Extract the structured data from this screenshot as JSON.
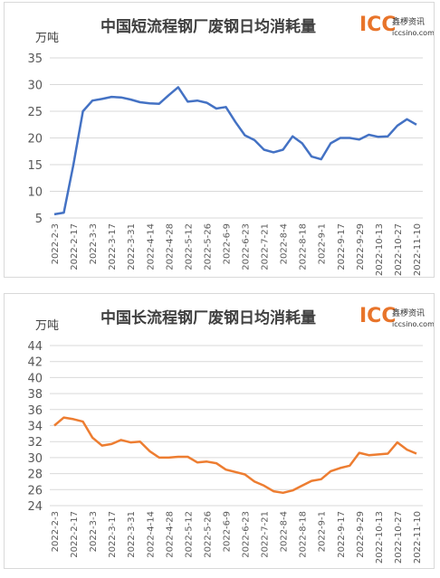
{
  "chart_data": [
    {
      "type": "line",
      "title": "中国短流程钢厂废钢日均消耗量",
      "y_label": "万吨",
      "logo": "ICC",
      "logo_cn": "鑫椤资讯",
      "logo_url": "iccsino.com",
      "categories": [
        "2022-2-3",
        null,
        "2022-2-17",
        null,
        "2022-3-3",
        null,
        "2022-3-17",
        null,
        "2022-3-31",
        null,
        "2022-4-14",
        null,
        "2022-4-28",
        null,
        "2022-5-12",
        null,
        "2022-5-26",
        null,
        "2022-6-9",
        null,
        "2022-6-23",
        null,
        "2022-7-21",
        null,
        "2022-8-4",
        null,
        "2022-8-18",
        null,
        "2022-9-1",
        null,
        "2022-9-17",
        null,
        "2022-9-29",
        null,
        "2022-10-13",
        null,
        "2022-10-27",
        null,
        "2022-11-10"
      ],
      "series": [
        {
          "color": "#4472c4",
          "values": [
            5.7,
            6,
            15,
            25,
            27,
            27.3,
            27.7,
            27.6,
            27.2,
            26.7,
            26.5,
            26.4,
            28,
            29.5,
            26.8,
            27,
            26.6,
            25.5,
            25.8,
            23,
            20.5,
            19.6,
            17.8,
            17.3,
            17.8,
            20.3,
            19,
            16.5,
            16,
            19,
            20,
            20,
            19.7,
            20.6,
            20.2,
            20.3,
            22.3,
            23.5,
            22.5
          ]
        }
      ],
      "ylim": [
        5,
        35
      ],
      "yticks": [
        5,
        10,
        15,
        20,
        25,
        30,
        35
      ],
      "grid": true
    },
    {
      "type": "line",
      "title": "中国长流程钢厂废钢日均消耗量",
      "y_label": "万吨",
      "logo": "ICC",
      "logo_cn": "鑫椤资讯",
      "logo_url": "iccsino.com",
      "categories": [
        "2022-2-3",
        null,
        "2022-2-17",
        null,
        "2022-3-3",
        null,
        "2022-3-17",
        null,
        "2022-3-31",
        null,
        "2022-4-14",
        null,
        "2022-4-28",
        null,
        "2022-5-12",
        null,
        "2022-5-26",
        null,
        "2022-6-9",
        null,
        "2022-6-23",
        null,
        "2022-7-21",
        null,
        "2022-8-4",
        null,
        "2022-8-18",
        null,
        "2022-9-1",
        null,
        "2022-9-17",
        null,
        "2022-9-29",
        null,
        "2022-10-13",
        null,
        "2022-10-27",
        null,
        "2022-11-10"
      ],
      "series": [
        {
          "color": "#ed7d31",
          "values": [
            34,
            35,
            34.8,
            34.5,
            32.5,
            31.5,
            31.7,
            32.2,
            31.9,
            32,
            30.8,
            30,
            30,
            30.1,
            30.1,
            29.4,
            29.5,
            29.3,
            28.5,
            28.2,
            27.9,
            27,
            26.5,
            25.8,
            25.6,
            25.9,
            26.5,
            27.1,
            27.3,
            28.3,
            28.7,
            29,
            30.6,
            30.3,
            30.4,
            30.5,
            31.9,
            31,
            30.5
          ]
        }
      ],
      "ylim": [
        24,
        44
      ],
      "yticks": [
        24,
        26,
        28,
        30,
        32,
        34,
        36,
        38,
        40,
        42,
        44
      ],
      "grid": true
    }
  ]
}
